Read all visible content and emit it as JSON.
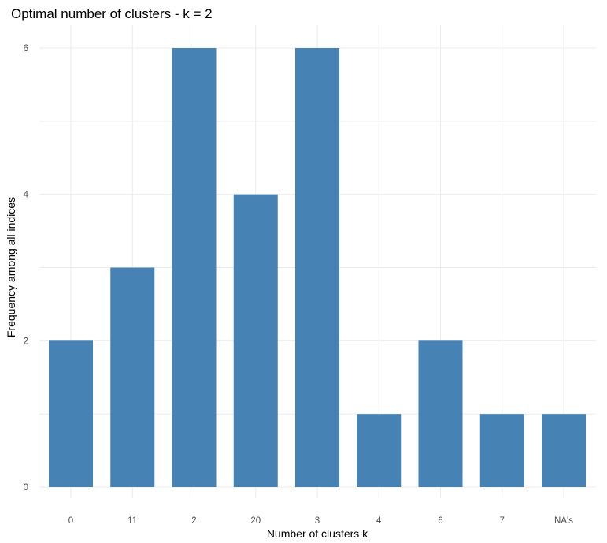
{
  "chart_data": {
    "type": "bar",
    "title": "Optimal number of clusters - k = 2",
    "xlabel": "Number of clusters k",
    "ylabel": "Frequency among all indices",
    "categories": [
      "0",
      "11",
      "2",
      "20",
      "3",
      "4",
      "6",
      "7",
      "NA's"
    ],
    "values": [
      2,
      3,
      6,
      4,
      6,
      1,
      2,
      1,
      1
    ],
    "ylim": [
      0,
      6
    ],
    "yticks": [
      0,
      2,
      4,
      6
    ],
    "grid": true,
    "bar_color": "#4682B4"
  }
}
